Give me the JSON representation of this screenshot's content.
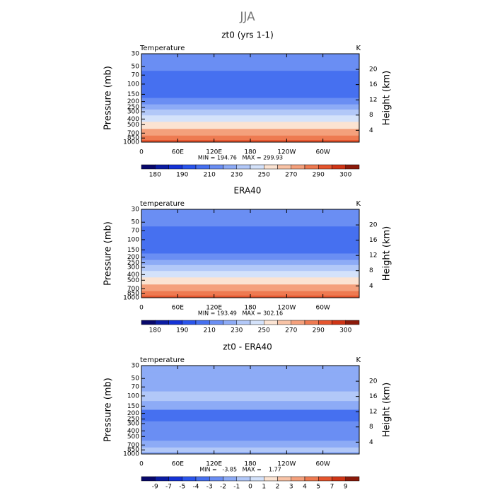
{
  "title": "JJA",
  "chart_data": [
    {
      "type": "contour",
      "title": "zt0 (yrs 1-1)",
      "left_label": "Temperature",
      "right_label": "K",
      "ylabel": "Pressure (mb)",
      "y2label": "Height (km)",
      "stats": "MIN = 194.76   MAX = 299.93",
      "log_y": true,
      "xlim": [
        0,
        360
      ],
      "ylim": [
        1000,
        30
      ],
      "y2lim": [
        0.9,
        24.1
      ],
      "xticks": [
        0,
        {
          "value": 60,
          "label": "60E"
        },
        {
          "value": 120,
          "label": "120E"
        },
        180,
        {
          "value": 240,
          "label": "120W"
        },
        {
          "value": 300,
          "label": "60W"
        }
      ],
      "yticks": [
        30,
        50,
        70,
        100,
        150,
        200,
        250,
        300,
        400,
        500,
        700,
        850,
        1000
      ],
      "y2ticks": [
        4,
        8,
        12,
        16,
        20
      ],
      "profile": {
        "pressure": [
          30,
          50,
          70,
          100,
          150,
          200,
          250,
          300,
          400,
          500,
          700,
          850,
          1000
        ],
        "values": [
          218,
          214,
          208,
          204,
          207,
          214,
          222,
          232,
          246,
          257,
          273,
          283,
          292
        ]
      },
      "colorbar_levels": [
        180,
        185,
        190,
        200,
        210,
        220,
        230,
        240,
        250,
        260,
        270,
        280,
        290,
        295,
        300
      ],
      "colorbar_labels": [
        180,
        190,
        210,
        230,
        250,
        270,
        290,
        300
      ],
      "colors": [
        "#08086b",
        "#0b1ca3",
        "#1432d6",
        "#2a55ec",
        "#4670f0",
        "#6a8ef3",
        "#8dabf6",
        "#b2c8f8",
        "#d4e2fa",
        "#fbe3d2",
        "#f8c3a6",
        "#f4a07c",
        "#ee7a51",
        "#e5552e",
        "#cf3516",
        "#8c1a0a"
      ]
    },
    {
      "type": "contour",
      "title": "ERA40",
      "left_label": "temperature",
      "right_label": "K",
      "ylabel": "Pressure (mb)",
      "y2label": "Height (km)",
      "stats": "MIN = 193.49   MAX = 302.16",
      "log_y": true,
      "xlim": [
        0,
        360
      ],
      "ylim": [
        1000,
        30
      ],
      "y2lim": [
        0.9,
        24.1
      ],
      "xticks": [
        0,
        {
          "value": 60,
          "label": "60E"
        },
        {
          "value": 120,
          "label": "120E"
        },
        180,
        {
          "value": 240,
          "label": "120W"
        },
        {
          "value": 300,
          "label": "60W"
        }
      ],
      "yticks": [
        30,
        50,
        70,
        100,
        150,
        200,
        250,
        300,
        400,
        500,
        700,
        850,
        1000
      ],
      "y2ticks": [
        4,
        8,
        12,
        16,
        20
      ],
      "profile": {
        "pressure": [
          30,
          50,
          70,
          100,
          150,
          200,
          250,
          300,
          400,
          500,
          700,
          850,
          1000
        ],
        "values": [
          218,
          214,
          208,
          204,
          208,
          215,
          224,
          234,
          248,
          258,
          274,
          284,
          294
        ]
      },
      "colorbar_levels": [
        180,
        185,
        190,
        200,
        210,
        220,
        230,
        240,
        250,
        260,
        270,
        280,
        290,
        295,
        300
      ],
      "colorbar_labels": [
        180,
        190,
        210,
        230,
        250,
        270,
        290,
        300
      ],
      "colors": [
        "#08086b",
        "#0b1ca3",
        "#1432d6",
        "#2a55ec",
        "#4670f0",
        "#6a8ef3",
        "#8dabf6",
        "#b2c8f8",
        "#d4e2fa",
        "#fbe3d2",
        "#f8c3a6",
        "#f4a07c",
        "#ee7a51",
        "#e5552e",
        "#cf3516",
        "#8c1a0a"
      ]
    },
    {
      "type": "contour",
      "title": "zt0 - ERA40",
      "left_label": "temperature",
      "right_label": "K",
      "ylabel": "Pressure (mb)",
      "y2label": "Height (km)",
      "stats": "MIN =   -3.85   MAX =    1.77",
      "log_y": true,
      "xlim": [
        0,
        360
      ],
      "ylim": [
        1000,
        30
      ],
      "y2lim": [
        0.9,
        24.1
      ],
      "xticks": [
        0,
        {
          "value": 60,
          "label": "60E"
        },
        {
          "value": 120,
          "label": "120E"
        },
        180,
        {
          "value": 240,
          "label": "120W"
        },
        {
          "value": 300,
          "label": "60W"
        }
      ],
      "yticks": [
        30,
        50,
        70,
        100,
        150,
        200,
        250,
        300,
        400,
        500,
        700,
        850,
        1000
      ],
      "y2ticks": [
        4,
        8,
        12,
        16,
        20
      ],
      "profile": {
        "pressure": [
          30,
          50,
          70,
          100,
          150,
          200,
          250,
          300,
          400,
          500,
          700,
          850,
          1000
        ],
        "values": [
          -1.5,
          -1.5,
          -1.5,
          -0.5,
          -1.5,
          -3.5,
          -3.5,
          -2.5,
          -2.5,
          -2.5,
          -1.5,
          -0.5,
          -1.5
        ]
      },
      "colorbar_levels": [
        -9,
        -7,
        -5,
        -4,
        -3,
        -2,
        -1,
        0,
        1,
        2,
        3,
        4,
        5,
        7,
        9
      ],
      "colors": [
        "#08086b",
        "#0b1ca3",
        "#1432d6",
        "#2a55ec",
        "#4670f0",
        "#6a8ef3",
        "#8dabf6",
        "#b2c8f8",
        "#d4e2fa",
        "#fbe3d2",
        "#f8c3a6",
        "#f4a07c",
        "#ee7a51",
        "#e5552e",
        "#cf3516",
        "#8c1a0a"
      ]
    }
  ]
}
